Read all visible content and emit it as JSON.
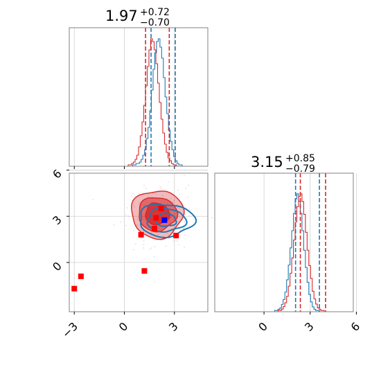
{
  "chart_data": {
    "type": "corner",
    "parameters": [
      {
        "title_value": "1.97",
        "title_plus": "+0.72",
        "title_minus": "−0.70"
      },
      {
        "title_value": "3.15",
        "title_plus": "+0.85",
        "title_minus": "−0.79"
      }
    ],
    "axes": {
      "x1_range": [
        -3.3,
        5.0
      ],
      "x2_range": [
        -3.2,
        5.8
      ],
      "x1_ticks": [
        {
          "value": -3,
          "label": "−3"
        },
        {
          "value": 0,
          "label": "0"
        },
        {
          "value": 3,
          "label": "3"
        }
      ],
      "x2_ticks": [
        {
          "value": 0,
          "label": "0"
        },
        {
          "value": 3,
          "label": "3"
        },
        {
          "value": 6,
          "label": "6"
        }
      ],
      "y_ticks": [
        {
          "value": 0,
          "label": "0"
        },
        {
          "value": 3,
          "label": "3"
        },
        {
          "value": 6,
          "label": "6"
        }
      ],
      "grid": true
    },
    "series": [
      {
        "color": "#1f77b4",
        "marginal_1_quantiles": [
          1.6,
          3.05
        ],
        "marginal_2_quantiles": [
          2.05,
          3.6
        ],
        "center": [
          2.4,
          2.75
        ],
        "hist_1": [
          0,
          0,
          0,
          0,
          0,
          0,
          0,
          0,
          0,
          0,
          0,
          0,
          0,
          0,
          0,
          0,
          0,
          0,
          0,
          0,
          0,
          0,
          0,
          0,
          0,
          0,
          0,
          0,
          0,
          0,
          0,
          0,
          0,
          0,
          0,
          0,
          0,
          1,
          1,
          2,
          2,
          3,
          5,
          8,
          12,
          20,
          28,
          40,
          55,
          70,
          82,
          90,
          92,
          86,
          78,
          64,
          50,
          38,
          26,
          18,
          12,
          7,
          4,
          2,
          1,
          1,
          0,
          0,
          0,
          0,
          0,
          0,
          0,
          0,
          0,
          0,
          0,
          0,
          0,
          0,
          0
        ],
        "hist_2": [
          0,
          0,
          0,
          0,
          0,
          0,
          0,
          0,
          0,
          0,
          0,
          0,
          0,
          0,
          0,
          0,
          0,
          0,
          0,
          0,
          0,
          0,
          0,
          0,
          0,
          0,
          0,
          0,
          0,
          0,
          0,
          0,
          0,
          0,
          0,
          1,
          1,
          2,
          3,
          6,
          10,
          16,
          26,
          38,
          52,
          66,
          80,
          92,
          96,
          90,
          80,
          66,
          50,
          36,
          24,
          14,
          8,
          4,
          2,
          1,
          1,
          0,
          0,
          0,
          0,
          0,
          0,
          0,
          0,
          0,
          0,
          0,
          0,
          0,
          0,
          0,
          0,
          0,
          0,
          0,
          0
        ]
      },
      {
        "color": "#d62728",
        "marginal_1_quantiles": [
          1.27,
          2.69
        ],
        "marginal_2_quantiles": [
          2.36,
          4.0
        ],
        "center": [
          1.97,
          3.15
        ],
        "hist_1": [
          0,
          0,
          0,
          0,
          0,
          0,
          0,
          0,
          0,
          0,
          0,
          0,
          0,
          0,
          0,
          0,
          0,
          0,
          0,
          0,
          0,
          0,
          0,
          0,
          0,
          0,
          0,
          0,
          0,
          0,
          0,
          0,
          0,
          0,
          1,
          1,
          2,
          3,
          5,
          8,
          14,
          22,
          32,
          44,
          58,
          72,
          84,
          92,
          90,
          84,
          74,
          60,
          46,
          34,
          24,
          16,
          10,
          6,
          4,
          2,
          1,
          1,
          0,
          0,
          0,
          0,
          0,
          0,
          0,
          0,
          0,
          0,
          0,
          0,
          0,
          0,
          0,
          0,
          0,
          0
        ],
        "hist_2": [
          0,
          0,
          0,
          0,
          0,
          0,
          0,
          0,
          0,
          0,
          0,
          0,
          0,
          0,
          0,
          0,
          0,
          0,
          0,
          0,
          0,
          0,
          0,
          0,
          0,
          0,
          0,
          0,
          0,
          0,
          0,
          0,
          0,
          0,
          0,
          0,
          0,
          1,
          1,
          2,
          4,
          7,
          12,
          20,
          30,
          42,
          56,
          70,
          82,
          90,
          92,
          86,
          76,
          62,
          48,
          36,
          26,
          16,
          10,
          6,
          3,
          2,
          1,
          1,
          0,
          0,
          0,
          0,
          0,
          0,
          0,
          0,
          0,
          0,
          0,
          0,
          0,
          0,
          0,
          0,
          0
        ]
      }
    ],
    "red_points": [
      [
        -3.0,
        -1.7
      ],
      [
        -2.6,
        -0.9
      ],
      [
        1.2,
        -0.55
      ],
      [
        1.0,
        1.8
      ],
      [
        1.8,
        2.2
      ],
      [
        1.9,
        2.9
      ],
      [
        2.2,
        3.5
      ],
      [
        3.1,
        1.75
      ]
    ],
    "blue_points": [
      [
        2.4,
        2.75
      ]
    ]
  }
}
